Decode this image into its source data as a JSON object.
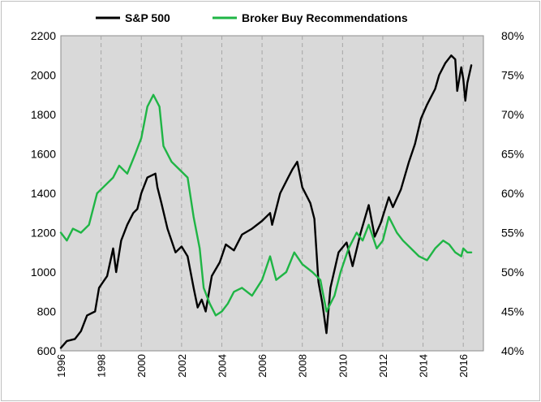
{
  "chart_data": {
    "type": "line",
    "title": "",
    "legend_position": "top-center",
    "grid": "vertical-dashed",
    "plot_background": "#d9d9d9",
    "x": {
      "range": [
        1996,
        2017
      ],
      "ticks": [
        1996,
        1998,
        2000,
        2002,
        2004,
        2006,
        2008,
        2010,
        2012,
        2014,
        2016
      ],
      "tick_labels": [
        "1996",
        "1998",
        "2000",
        "2002",
        "2004",
        "2006",
        "2008",
        "2010",
        "2012",
        "2014",
        "2016"
      ]
    },
    "y_left": {
      "range": [
        600,
        2200
      ],
      "ticks": [
        600,
        800,
        1000,
        1200,
        1400,
        1600,
        1800,
        2000,
        2200
      ],
      "tick_labels": [
        "600",
        "800",
        "1000",
        "1200",
        "1400",
        "1600",
        "1800",
        "2000",
        "2200"
      ]
    },
    "y_right": {
      "range": [
        40,
        80
      ],
      "ticks": [
        40,
        45,
        50,
        55,
        60,
        65,
        70,
        75,
        80
      ],
      "tick_labels": [
        "40%",
        "45%",
        "50%",
        "55%",
        "60%",
        "65%",
        "70%",
        "75%",
        "80%"
      ]
    },
    "series": [
      {
        "name": "S&P 500",
        "axis": "left",
        "color": "#000000",
        "points": [
          [
            1996.0,
            615
          ],
          [
            1996.3,
            650
          ],
          [
            1996.7,
            660
          ],
          [
            1997.0,
            700
          ],
          [
            1997.3,
            780
          ],
          [
            1997.7,
            800
          ],
          [
            1997.9,
            920
          ],
          [
            1998.3,
            980
          ],
          [
            1998.6,
            1120
          ],
          [
            1998.75,
            1000
          ],
          [
            1999.0,
            1160
          ],
          [
            1999.3,
            1240
          ],
          [
            1999.6,
            1300
          ],
          [
            1999.8,
            1320
          ],
          [
            2000.0,
            1400
          ],
          [
            2000.3,
            1480
          ],
          [
            2000.7,
            1500
          ],
          [
            2000.8,
            1430
          ],
          [
            2001.0,
            1350
          ],
          [
            2001.3,
            1220
          ],
          [
            2001.7,
            1100
          ],
          [
            2002.0,
            1130
          ],
          [
            2002.3,
            1080
          ],
          [
            2002.6,
            920
          ],
          [
            2002.8,
            820
          ],
          [
            2003.0,
            860
          ],
          [
            2003.2,
            800
          ],
          [
            2003.5,
            980
          ],
          [
            2003.9,
            1050
          ],
          [
            2004.2,
            1140
          ],
          [
            2004.6,
            1110
          ],
          [
            2005.0,
            1190
          ],
          [
            2005.5,
            1220
          ],
          [
            2006.0,
            1260
          ],
          [
            2006.4,
            1300
          ],
          [
            2006.5,
            1240
          ],
          [
            2006.9,
            1400
          ],
          [
            2007.3,
            1480
          ],
          [
            2007.5,
            1520
          ],
          [
            2007.75,
            1560
          ],
          [
            2008.0,
            1430
          ],
          [
            2008.4,
            1350
          ],
          [
            2008.6,
            1270
          ],
          [
            2008.8,
            950
          ],
          [
            2009.0,
            840
          ],
          [
            2009.2,
            690
          ],
          [
            2009.4,
            920
          ],
          [
            2009.8,
            1100
          ],
          [
            2010.2,
            1150
          ],
          [
            2010.5,
            1030
          ],
          [
            2010.9,
            1200
          ],
          [
            2011.3,
            1340
          ],
          [
            2011.6,
            1180
          ],
          [
            2011.9,
            1250
          ],
          [
            2012.3,
            1380
          ],
          [
            2012.5,
            1330
          ],
          [
            2012.9,
            1420
          ],
          [
            2013.3,
            1560
          ],
          [
            2013.6,
            1650
          ],
          [
            2013.9,
            1780
          ],
          [
            2014.2,
            1850
          ],
          [
            2014.6,
            1930
          ],
          [
            2014.8,
            2000
          ],
          [
            2015.1,
            2060
          ],
          [
            2015.4,
            2100
          ],
          [
            2015.6,
            2080
          ],
          [
            2015.7,
            1920
          ],
          [
            2015.9,
            2040
          ],
          [
            2016.0,
            1980
          ],
          [
            2016.1,
            1870
          ],
          [
            2016.2,
            1960
          ],
          [
            2016.4,
            2050
          ]
        ]
      },
      {
        "name": "Broker Buy Recommendations",
        "axis": "right",
        "color": "#1fb545",
        "points": [
          [
            1996.0,
            55
          ],
          [
            1996.3,
            54
          ],
          [
            1996.6,
            55.5
          ],
          [
            1997.0,
            55
          ],
          [
            1997.4,
            56
          ],
          [
            1997.8,
            60
          ],
          [
            1998.2,
            61
          ],
          [
            1998.6,
            62
          ],
          [
            1998.9,
            63.5
          ],
          [
            1999.3,
            62.5
          ],
          [
            1999.7,
            65
          ],
          [
            2000.0,
            67
          ],
          [
            2000.3,
            71
          ],
          [
            2000.6,
            72.5
          ],
          [
            2000.9,
            71
          ],
          [
            2001.1,
            66
          ],
          [
            2001.5,
            64
          ],
          [
            2001.9,
            63
          ],
          [
            2002.3,
            62
          ],
          [
            2002.6,
            57
          ],
          [
            2002.9,
            53
          ],
          [
            2003.1,
            48
          ],
          [
            2003.4,
            46
          ],
          [
            2003.7,
            44.5
          ],
          [
            2004.0,
            45
          ],
          [
            2004.3,
            46
          ],
          [
            2004.6,
            47.5
          ],
          [
            2005.0,
            48
          ],
          [
            2005.5,
            47
          ],
          [
            2006.0,
            49
          ],
          [
            2006.4,
            52
          ],
          [
            2006.7,
            49
          ],
          [
            2007.2,
            50
          ],
          [
            2007.6,
            52.5
          ],
          [
            2008.0,
            51
          ],
          [
            2008.5,
            50
          ],
          [
            2008.9,
            49
          ],
          [
            2009.2,
            45
          ],
          [
            2009.6,
            47
          ],
          [
            2009.9,
            50
          ],
          [
            2010.3,
            53
          ],
          [
            2010.7,
            55
          ],
          [
            2011.0,
            54
          ],
          [
            2011.3,
            56
          ],
          [
            2011.7,
            53
          ],
          [
            2012.0,
            54
          ],
          [
            2012.3,
            57
          ],
          [
            2012.7,
            55
          ],
          [
            2013.0,
            54
          ],
          [
            2013.4,
            53
          ],
          [
            2013.8,
            52
          ],
          [
            2014.2,
            51.5
          ],
          [
            2014.6,
            53
          ],
          [
            2015.0,
            54
          ],
          [
            2015.3,
            53.5
          ],
          [
            2015.6,
            52.5
          ],
          [
            2015.9,
            52
          ],
          [
            2016.0,
            53
          ],
          [
            2016.2,
            52.5
          ],
          [
            2016.4,
            52.5
          ]
        ]
      }
    ]
  }
}
